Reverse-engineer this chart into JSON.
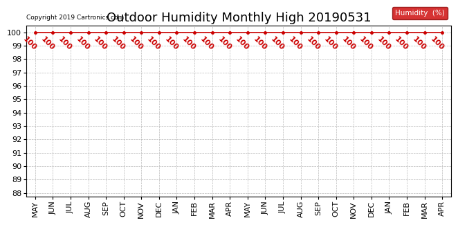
{
  "title": "Outdoor Humidity Monthly High 20190531",
  "copyright_text": "Copyright 2019 Cartronics.com",
  "legend_label": "Humidity  (%)",
  "legend_bg": "#cc0000",
  "legend_text_color": "#ffffff",
  "x_labels": [
    "MAY",
    "JUN",
    "JUL",
    "AUG",
    "SEP",
    "OCT",
    "NOV",
    "DEC",
    "JAN",
    "FEB",
    "MAR",
    "APR",
    "MAY",
    "JUN",
    "JUL",
    "AUG",
    "SEP",
    "OCT",
    "NOV",
    "DEC",
    "JAN",
    "FEB",
    "MAR",
    "APR"
  ],
  "y_values": [
    100,
    100,
    100,
    100,
    100,
    100,
    100,
    100,
    100,
    100,
    100,
    100,
    100,
    100,
    100,
    100,
    100,
    100,
    100,
    100,
    100,
    100,
    100,
    100
  ],
  "ylim_min": 87.7,
  "ylim_max": 100.5,
  "yticks": [
    88,
    89,
    90,
    91,
    92,
    93,
    94,
    95,
    96,
    97,
    98,
    99,
    100
  ],
  "line_color": "#cc0000",
  "marker_color": "#cc0000",
  "annotation_color": "#cc0000",
  "grid_color": "#bbbbbb",
  "bg_color": "#ffffff",
  "title_fontsize": 13,
  "tick_fontsize": 8,
  "annotation_fontsize": 8,
  "annotation_rotation": -45
}
